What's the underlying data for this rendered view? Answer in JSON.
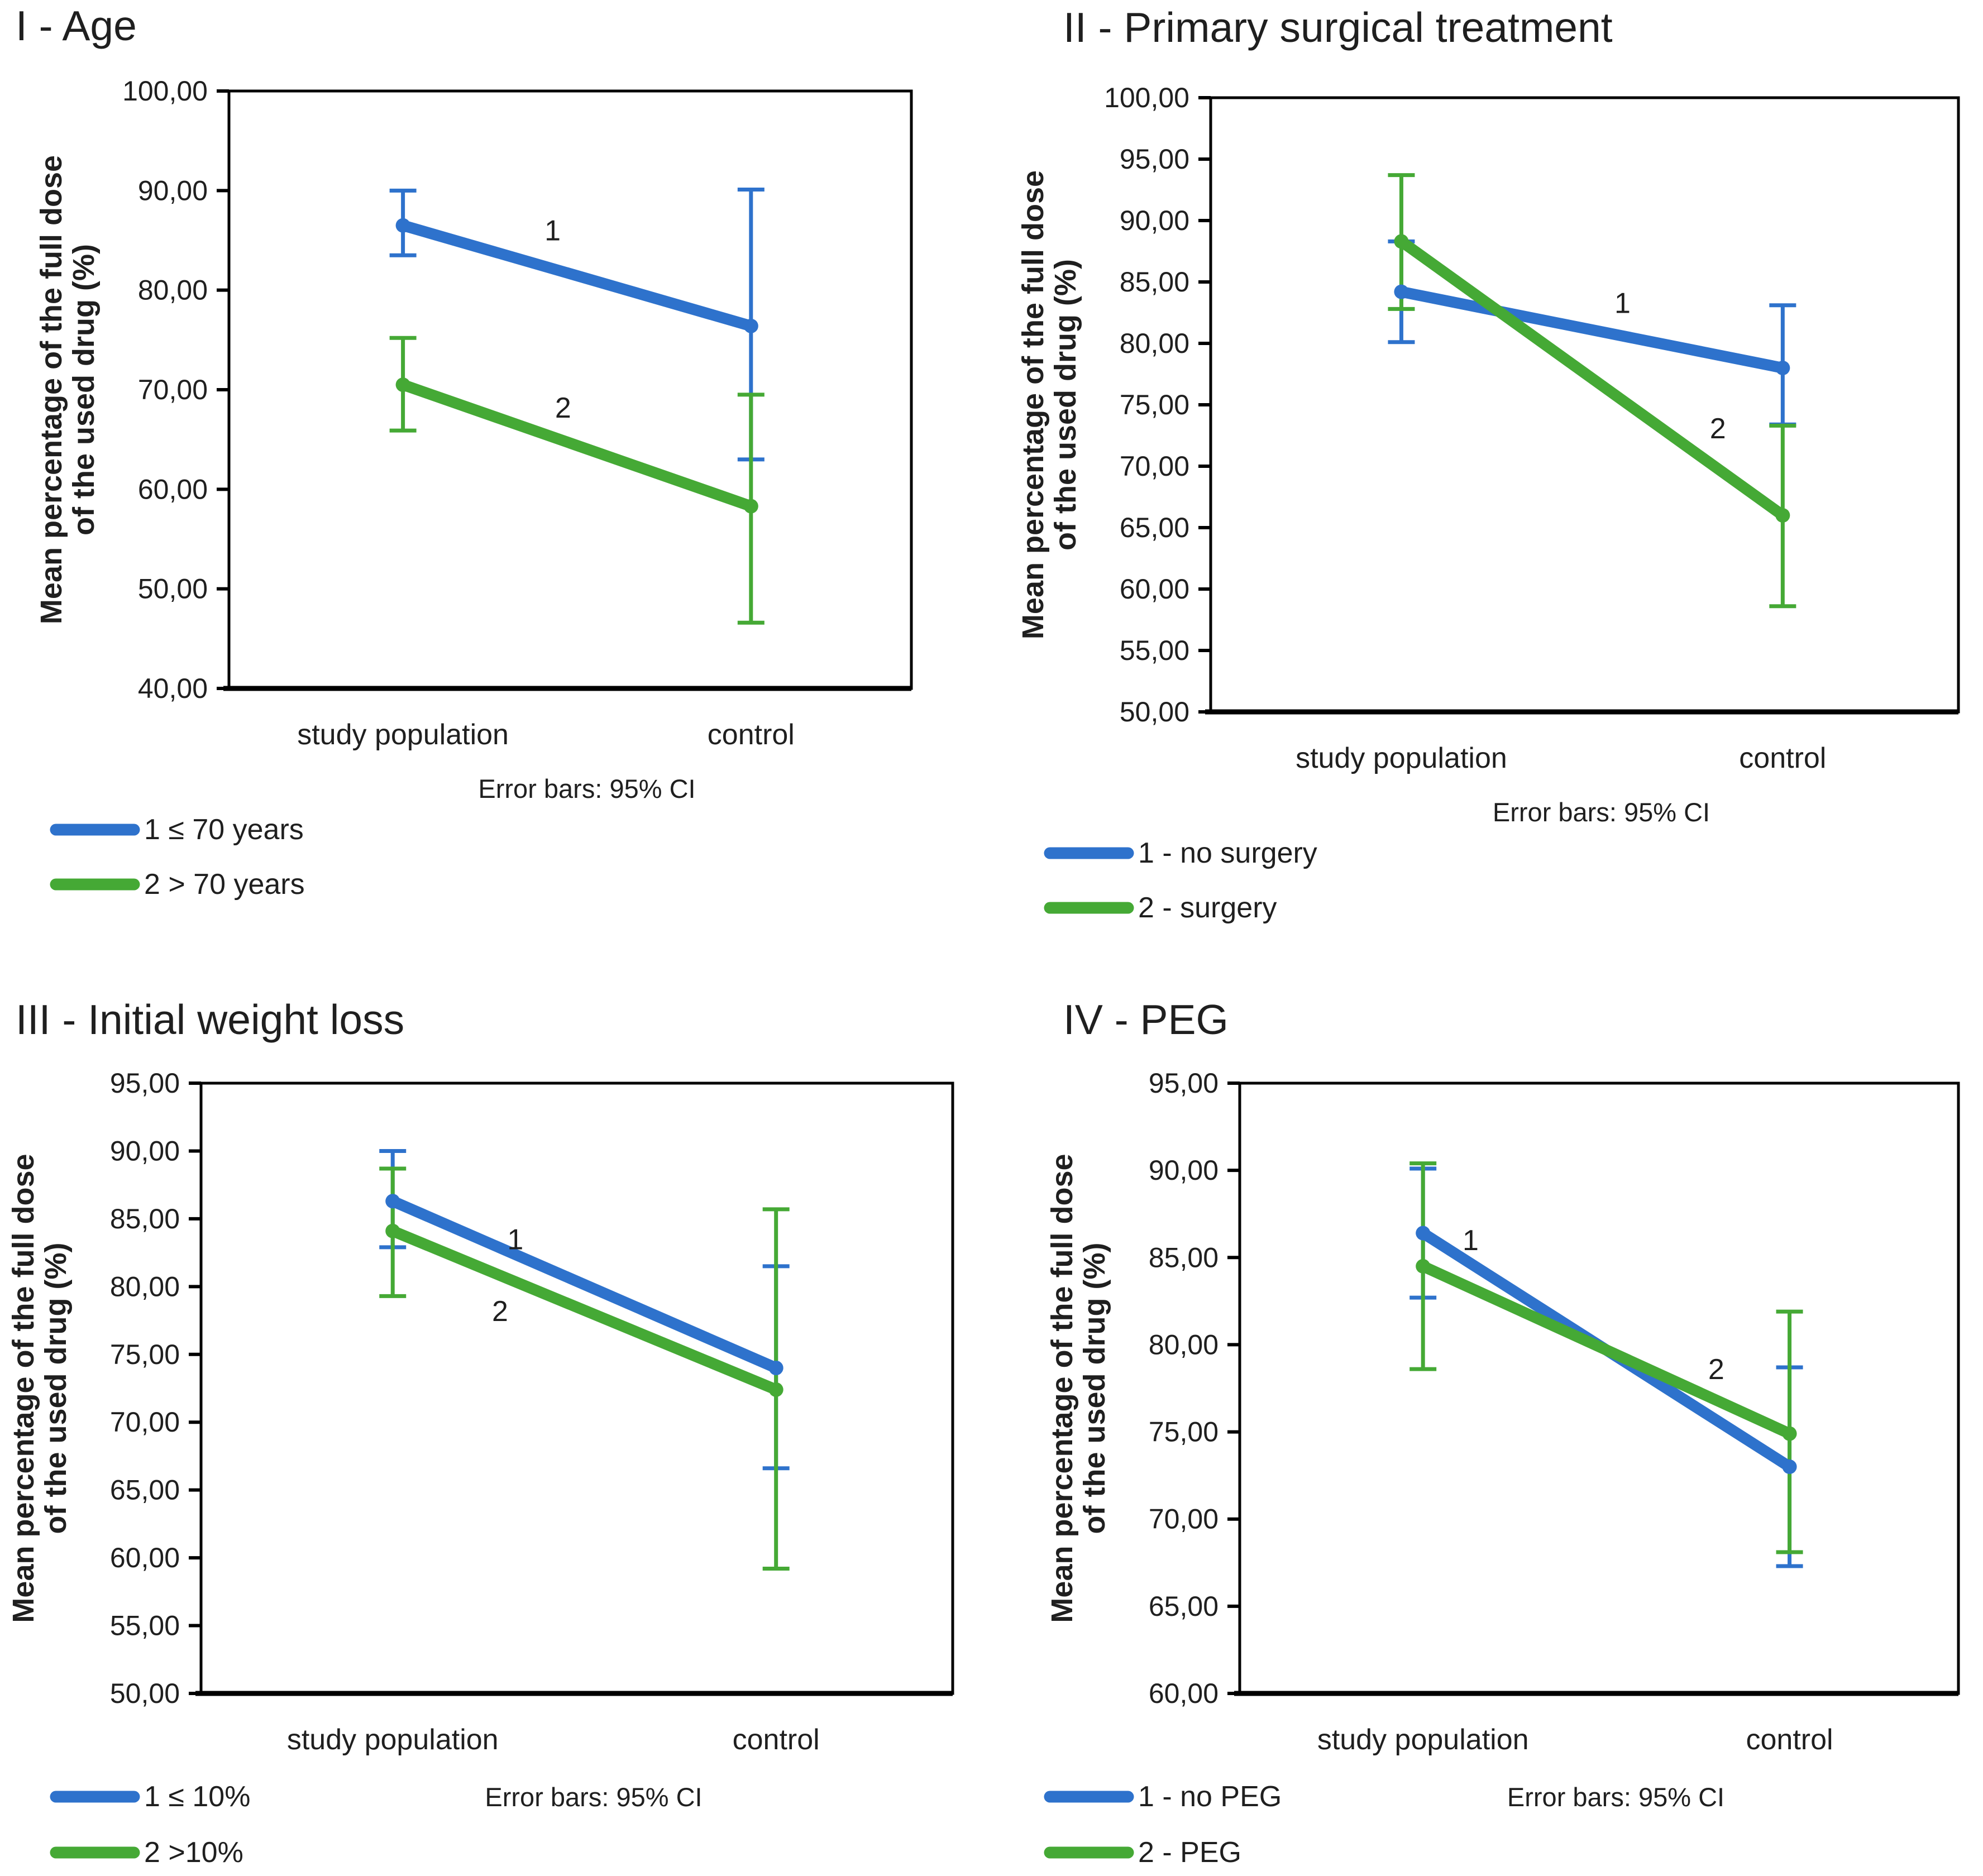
{
  "figure": {
    "colors": {
      "series_blue": "#2e72cc",
      "series_green": "#45a935",
      "axis": "#000000",
      "text": "#1f1f1f",
      "background": "#ffffff"
    },
    "ylabel_lines": [
      "Mean percentage of the full dose",
      "of the used drug (%)"
    ]
  },
  "chart_data": [
    {
      "type": "line",
      "title": "I - Age",
      "categories": [
        "study population",
        "control"
      ],
      "xlabel": "",
      "ylabel": "Mean percentage of the full dose of the used drug (%)",
      "ylim": [
        40,
        100
      ],
      "ytick_step": 10,
      "grid": false,
      "legend_position": "bottom-left",
      "annotation": "Error bars: 95% CI",
      "series": [
        {
          "name": "1 ≤ 70 years",
          "color": "series_blue",
          "values": [
            86.5,
            76.4
          ],
          "ci_low": [
            83.5,
            63.0
          ],
          "ci_high": [
            90.0,
            90.1
          ],
          "point_label": {
            "text": "1",
            "fx": 0.43,
            "y": 86.0
          }
        },
        {
          "name": "2 > 70 years",
          "color": "series_green",
          "values": [
            70.5,
            58.3
          ],
          "ci_low": [
            65.9,
            46.6
          ],
          "ci_high": [
            75.2,
            69.5
          ],
          "point_label": {
            "text": "2",
            "fx": 0.46,
            "y": 68.2
          }
        }
      ]
    },
    {
      "type": "line",
      "title": "II - Primary surgical treatment",
      "categories": [
        "study population",
        "control"
      ],
      "xlabel": "",
      "ylabel": "Mean percentage of the full dose of the used drug (%)",
      "ylim": [
        50,
        100
      ],
      "ytick_step": 5,
      "grid": false,
      "legend_position": "bottom-left",
      "annotation": "Error bars: 95% CI",
      "series": [
        {
          "name": "1 - no surgery",
          "color": "series_blue",
          "values": [
            84.2,
            78.0
          ],
          "ci_low": [
            80.1,
            73.4
          ],
          "ci_high": [
            88.3,
            83.1
          ],
          "point_label": {
            "text": "1",
            "fx": 0.58,
            "y": 83.3
          }
        },
        {
          "name": "2 - surgery",
          "color": "series_green",
          "values": [
            88.3,
            66.0
          ],
          "ci_low": [
            82.8,
            58.6
          ],
          "ci_high": [
            93.7,
            73.3
          ],
          "point_label": {
            "text": "2",
            "fx": 0.83,
            "y": 73.1
          }
        }
      ]
    },
    {
      "type": "line",
      "title": "III - Initial weight loss",
      "categories": [
        "study population",
        "control"
      ],
      "xlabel": "",
      "ylabel": "Mean percentage of the full dose of the used drug (%)",
      "ylim": [
        50,
        95
      ],
      "ytick_step": 5,
      "grid": false,
      "legend_position": "bottom-left",
      "annotation": "Error bars: 95% CI",
      "series": [
        {
          "name": "1 ≤ 10%",
          "color": "series_blue",
          "values": [
            86.3,
            74.0
          ],
          "ci_low": [
            82.9,
            66.6
          ],
          "ci_high": [
            90.0,
            81.5
          ],
          "point_label": {
            "text": "1",
            "fx": 0.32,
            "y": 83.5
          }
        },
        {
          "name": "2 >10%",
          "color": "series_green",
          "values": [
            84.1,
            72.4
          ],
          "ci_low": [
            79.3,
            59.2
          ],
          "ci_high": [
            88.7,
            85.7
          ],
          "point_label": {
            "text": "2",
            "fx": 0.28,
            "y": 78.2
          }
        }
      ]
    },
    {
      "type": "line",
      "title": "IV - PEG",
      "categories": [
        "study population",
        "control"
      ],
      "xlabel": "",
      "ylabel": "Mean percentage of the full dose of the used drug (%)",
      "ylim": [
        60,
        95
      ],
      "ytick_step": 5,
      "grid": false,
      "legend_position": "bottom-left",
      "annotation": "Error bars: 95% CI",
      "series": [
        {
          "name": "1 - no PEG",
          "color": "series_blue",
          "values": [
            86.4,
            73.0
          ],
          "ci_low": [
            82.7,
            67.3
          ],
          "ci_high": [
            90.1,
            78.7
          ],
          "point_label": {
            "text": "1",
            "fx": 0.13,
            "y": 86.0
          }
        },
        {
          "name": "2 - PEG",
          "color": "series_green",
          "values": [
            84.5,
            74.9
          ],
          "ci_low": [
            78.6,
            68.1
          ],
          "ci_high": [
            90.4,
            81.9
          ],
          "point_label": {
            "text": "2",
            "fx": 0.8,
            "y": 78.6
          }
        }
      ]
    }
  ]
}
